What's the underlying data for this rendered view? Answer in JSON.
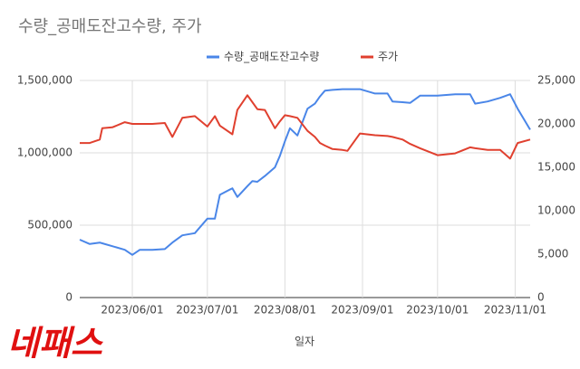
{
  "chart_data": {
    "type": "line",
    "title": "수량_공매도잔고수량, 주가",
    "x_label": "일자",
    "annotation": "네패스",
    "legend": "top",
    "grid": true,
    "x": [
      "2023/05/11",
      "2023/05/15",
      "2023/05/19",
      "2023/05/20",
      "2023/05/24",
      "2023/05/29",
      "2023/06/01",
      "2023/06/04",
      "2023/06/09",
      "2023/06/14",
      "2023/06/17",
      "2023/06/21",
      "2023/06/26",
      "2023/07/01",
      "2023/07/04",
      "2023/07/06",
      "2023/07/11",
      "2023/07/13",
      "2023/07/17",
      "2023/07/19",
      "2023/07/21",
      "2023/07/24",
      "2023/07/28",
      "2023/07/30",
      "2023/08/01",
      "2023/08/03",
      "2023/08/06",
      "2023/08/10",
      "2023/08/13",
      "2023/08/15",
      "2023/08/17",
      "2023/08/20",
      "2023/08/24",
      "2023/08/26",
      "2023/08/31",
      "2023/09/06",
      "2023/09/11",
      "2023/09/13",
      "2023/09/17",
      "2023/09/20",
      "2023/09/24",
      "2023/10/01",
      "2023/10/08",
      "2023/10/14",
      "2023/10/16",
      "2023/10/21",
      "2023/10/26",
      "2023/10/30",
      "2023/11/02",
      "2023/11/07"
    ],
    "xlim": [
      "2023/05/11",
      "2023/11/07"
    ],
    "xticks": [
      "2023/06/01",
      "2023/07/01",
      "2023/08/01",
      "2023/09/01",
      "2023/10/01",
      "2023/11/01"
    ],
    "ylim": [
      0,
      1500000
    ],
    "yticks": [
      0,
      {
        "value": 500000,
        "label": "500,000"
      },
      {
        "value": 1000000,
        "label": "1,000,000"
      },
      {
        "value": 1500000,
        "label": "1,500,000"
      }
    ],
    "y2lim": [
      0,
      25000
    ],
    "y2ticks": [
      0,
      {
        "value": 5000,
        "label": "5,000"
      },
      {
        "value": 10000,
        "label": "10,000"
      },
      {
        "value": 15000,
        "label": "15,000"
      },
      {
        "value": 20000,
        "label": "20,000"
      },
      {
        "value": 25000,
        "label": "25,000"
      }
    ],
    "series": [
      {
        "name": "수량_공매도잔고수량",
        "color": "#4a86e8",
        "axis": "y",
        "values": [
          400000,
          370000,
          380000,
          375000,
          355000,
          330000,
          295000,
          330000,
          330000,
          335000,
          380000,
          430000,
          445000,
          545000,
          545000,
          710000,
          755000,
          695000,
          770000,
          805000,
          800000,
          840000,
          900000,
          980000,
          1080000,
          1170000,
          1120000,
          1305000,
          1340000,
          1390000,
          1430000,
          1435000,
          1440000,
          1440000,
          1440000,
          1410000,
          1410000,
          1355000,
          1350000,
          1345000,
          1395000,
          1395000,
          1405000,
          1405000,
          1340000,
          1355000,
          1380000,
          1405000,
          1305000,
          1160000
        ]
      },
      {
        "name": "주가",
        "color": "#e0402f",
        "axis": "y2",
        "values": [
          17800,
          17800,
          18200,
          19500,
          19600,
          20200,
          20000,
          20000,
          20000,
          20100,
          18500,
          20700,
          20900,
          19700,
          20900,
          19800,
          18800,
          21600,
          23300,
          22500,
          21700,
          21600,
          19500,
          20300,
          21000,
          20900,
          20700,
          19200,
          18500,
          17800,
          17500,
          17100,
          17000,
          16900,
          18900,
          18700,
          18600,
          18500,
          18200,
          17700,
          17200,
          16400,
          16600,
          17300,
          17200,
          17000,
          17000,
          16000,
          17800,
          18200
        ]
      }
    ]
  }
}
